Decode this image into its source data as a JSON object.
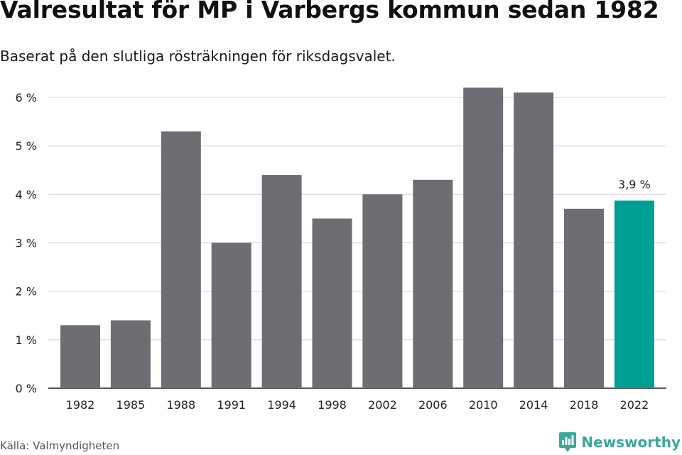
{
  "header": {
    "title": "Valresultat för MP i Varbergs kommun sedan 1982",
    "subtitle": "Baserat på den slutliga rösträkningen för riksdagsvalet."
  },
  "footer": {
    "source": "Källa: Valmyndigheten",
    "brand": "Newsworthy",
    "brand_icon": "newsworthy-logo-icon"
  },
  "colors": {
    "bar": "#6e6d72",
    "highlight": "#009f96",
    "grid": "#d9d9d9",
    "axis": "#222222",
    "brand": "#3aa89a"
  },
  "chart_data": {
    "type": "bar",
    "categories": [
      "1982",
      "1985",
      "1988",
      "1991",
      "1994",
      "1998",
      "2002",
      "2006",
      "2010",
      "2014",
      "2018",
      "2022"
    ],
    "values": [
      1.3,
      1.4,
      5.3,
      3.0,
      4.4,
      3.5,
      4.0,
      4.3,
      6.2,
      6.1,
      3.7,
      3.87
    ],
    "ylim": [
      0,
      6
    ],
    "yticks": [
      0,
      1,
      2,
      3,
      4,
      5,
      6
    ],
    "ytick_labels": [
      "0 %",
      "1 %",
      "2 %",
      "3 %",
      "4 %",
      "5 %",
      "6 %"
    ],
    "highlight_index": 11,
    "annotations": [
      {
        "category": "2022",
        "text": "3,9 %"
      }
    ],
    "grid": true,
    "xlabel": "",
    "ylabel": ""
  }
}
